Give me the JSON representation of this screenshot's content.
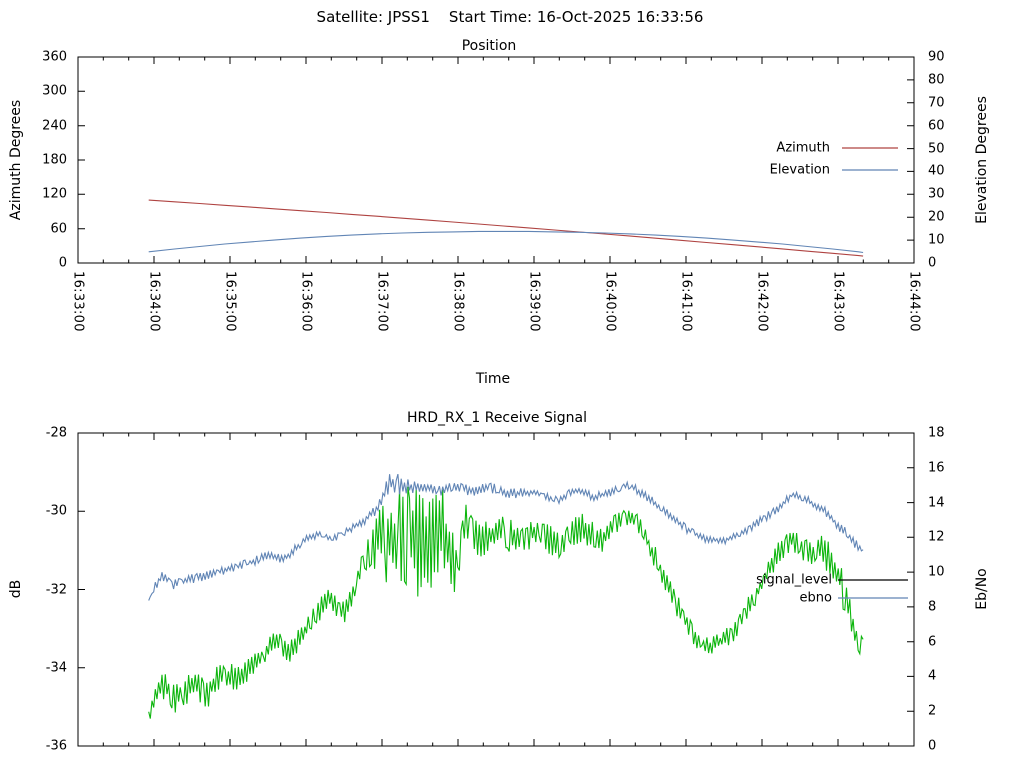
{
  "header": {
    "title": "Satellite: JPSS1    Start Time: 16-Oct-2025 16:33:56"
  },
  "chart_data": [
    {
      "type": "line",
      "title": "Position",
      "xlabel": "Time",
      "grid": false,
      "x_ticks": [
        "16:33:00",
        "16:34:00",
        "16:35:00",
        "16:36:00",
        "16:37:00",
        "16:38:00",
        "16:39:00",
        "16:40:00",
        "16:41:00",
        "16:42:00",
        "16:43:00",
        "16:44:00"
      ],
      "x_tick_minutes": [
        33,
        34,
        35,
        36,
        37,
        38,
        39,
        40,
        41,
        42,
        43,
        44
      ],
      "x_minor_tick_seconds": 20,
      "y_left": {
        "label": "Azimuth Degrees",
        "range": [
          0,
          360
        ],
        "ticks": [
          0,
          60,
          120,
          180,
          240,
          300,
          360
        ]
      },
      "y_right": {
        "label": "Elevation Degrees",
        "range": [
          0,
          90
        ],
        "ticks": [
          0,
          10,
          20,
          30,
          40,
          50,
          60,
          70,
          80,
          90
        ]
      },
      "legend": [
        {
          "label": "Azimuth",
          "sample_color": "#af4341"
        },
        {
          "label": "Elevation",
          "sample_color": "#6185b5"
        }
      ],
      "series": [
        {
          "name": "Azimuth",
          "axis": "left",
          "color": "#af4341",
          "t": [
            33.93,
            34.27,
            34.6,
            34.93,
            35.27,
            35.6,
            35.93,
            36.27,
            36.6,
            36.93,
            37.27,
            37.6,
            37.93,
            38.27,
            38.6,
            38.93,
            39.27,
            39.6,
            39.93,
            40.27,
            40.6,
            40.93,
            41.27,
            41.6,
            41.93,
            42.27,
            42.6,
            42.93,
            43.27,
            43.33
          ],
          "values": [
            110.0,
            107.0,
            103.9,
            100.9,
            97.7,
            94.6,
            91.4,
            88.2,
            84.9,
            81.7,
            78.3,
            75.0,
            71.6,
            68.2,
            64.7,
            61.3,
            57.7,
            54.2,
            50.6,
            47.0,
            43.3,
            39.7,
            35.9,
            32.2,
            28.4,
            24.6,
            20.7,
            16.9,
            12.9,
            12.1
          ]
        },
        {
          "name": "Elevation",
          "axis": "right",
          "color": "#6185b5",
          "t": [
            33.93,
            34.27,
            34.6,
            34.93,
            35.27,
            35.6,
            35.93,
            36.27,
            36.6,
            36.93,
            37.27,
            37.6,
            37.93,
            38.27,
            38.6,
            38.93,
            39.27,
            39.6,
            39.93,
            40.27,
            40.6,
            40.93,
            41.27,
            41.6,
            41.93,
            42.27,
            42.6,
            42.93,
            43.27,
            43.33
          ],
          "values": [
            4.9,
            6.1,
            7.2,
            8.3,
            9.2,
            10.1,
            10.9,
            11.6,
            12.2,
            12.7,
            13.1,
            13.4,
            13.6,
            13.8,
            13.8,
            13.8,
            13.6,
            13.4,
            13.1,
            12.7,
            12.2,
            11.6,
            10.9,
            10.1,
            9.2,
            8.3,
            7.2,
            6.1,
            4.9,
            4.6
          ]
        }
      ]
    },
    {
      "type": "line",
      "title": "HRD_RX_1 Receive Signal",
      "xlabel": "",
      "grid": false,
      "x_tick_minutes": [
        33,
        34,
        35,
        36,
        37,
        38,
        39,
        40,
        41,
        42,
        43,
        44
      ],
      "x_tick_labels_visible": false,
      "x_minor_tick_seconds": 20,
      "y_left": {
        "label": "dB",
        "range": [
          -36,
          -28
        ],
        "ticks": [
          -36,
          -34,
          -32,
          -30,
          -28
        ]
      },
      "y_right": {
        "label": "Eb/No",
        "range": [
          0,
          18
        ],
        "ticks": [
          0,
          2,
          4,
          6,
          8,
          10,
          12,
          14,
          16,
          18
        ]
      },
      "legend": [
        {
          "label": "signal_level",
          "sample_color": "#000000"
        },
        {
          "label": "ebno",
          "sample_color": "#6185b5"
        }
      ],
      "series": [
        {
          "name": "signal_level",
          "axis": "left",
          "color": "#0cb50c",
          "noise_seed": 7,
          "keyframes": [
            [
              33.93,
              -35.2,
              0.25
            ],
            [
              34.1,
              -34.4,
              0.35
            ],
            [
              34.3,
              -34.8,
              0.4
            ],
            [
              34.5,
              -34.4,
              0.4
            ],
            [
              34.7,
              -34.7,
              0.35
            ],
            [
              34.9,
              -34.1,
              0.35
            ],
            [
              35.1,
              -34.3,
              0.3
            ],
            [
              35.35,
              -33.8,
              0.3
            ],
            [
              35.6,
              -33.3,
              0.3
            ],
            [
              35.8,
              -33.6,
              0.3
            ],
            [
              36.0,
              -33.0,
              0.25
            ],
            [
              36.3,
              -32.2,
              0.3
            ],
            [
              36.5,
              -32.6,
              0.3
            ],
            [
              36.7,
              -31.6,
              0.35
            ],
            [
              36.85,
              -31.0,
              0.6
            ],
            [
              37.0,
              -30.6,
              1.0
            ],
            [
              37.2,
              -30.9,
              1.5
            ],
            [
              37.4,
              -30.7,
              1.6
            ],
            [
              37.6,
              -30.9,
              1.5
            ],
            [
              37.8,
              -30.6,
              1.2
            ],
            [
              37.95,
              -31.5,
              0.9
            ],
            [
              38.1,
              -30.3,
              0.5
            ],
            [
              38.3,
              -30.8,
              0.5
            ],
            [
              38.5,
              -30.5,
              0.45
            ],
            [
              38.8,
              -30.7,
              0.4
            ],
            [
              39.1,
              -30.5,
              0.4
            ],
            [
              39.3,
              -30.9,
              0.4
            ],
            [
              39.6,
              -30.4,
              0.4
            ],
            [
              39.9,
              -30.7,
              0.35
            ],
            [
              40.1,
              -30.3,
              0.3
            ],
            [
              40.35,
              -30.2,
              0.25
            ],
            [
              40.6,
              -31.2,
              0.3
            ],
            [
              40.85,
              -32.3,
              0.3
            ],
            [
              41.1,
              -33.2,
              0.25
            ],
            [
              41.3,
              -33.5,
              0.25
            ],
            [
              41.5,
              -33.3,
              0.25
            ],
            [
              41.7,
              -32.9,
              0.3
            ],
            [
              41.95,
              -32.0,
              0.3
            ],
            [
              42.2,
              -31.1,
              0.3
            ],
            [
              42.4,
              -30.7,
              0.3
            ],
            [
              42.6,
              -31.1,
              0.35
            ],
            [
              42.8,
              -31.0,
              0.4
            ],
            [
              43.0,
              -31.6,
              0.5
            ],
            [
              43.15,
              -32.6,
              0.4
            ],
            [
              43.28,
              -33.5,
              0.2
            ],
            [
              43.33,
              -33.2,
              0.1
            ]
          ]
        },
        {
          "name": "ebno",
          "axis": "right",
          "color": "#6185b5",
          "noise_seed": 13,
          "keyframes": [
            [
              33.93,
              8.5,
              0.25
            ],
            [
              34.1,
              9.8,
              0.3
            ],
            [
              34.25,
              9.3,
              0.3
            ],
            [
              34.5,
              9.6,
              0.3
            ],
            [
              34.75,
              9.9,
              0.25
            ],
            [
              35.0,
              10.2,
              0.25
            ],
            [
              35.3,
              10.6,
              0.25
            ],
            [
              35.5,
              11.0,
              0.25
            ],
            [
              35.7,
              10.7,
              0.25
            ],
            [
              36.0,
              11.9,
              0.25
            ],
            [
              36.2,
              12.2,
              0.2
            ],
            [
              36.35,
              11.9,
              0.2
            ],
            [
              36.55,
              12.4,
              0.2
            ],
            [
              36.75,
              12.9,
              0.25
            ],
            [
              36.95,
              13.7,
              0.3
            ],
            [
              37.1,
              15.2,
              0.7
            ],
            [
              37.25,
              15.0,
              0.6
            ],
            [
              37.4,
              14.8,
              0.4
            ],
            [
              37.6,
              14.9,
              0.35
            ],
            [
              37.8,
              14.7,
              0.35
            ],
            [
              38.0,
              14.9,
              0.3
            ],
            [
              38.2,
              14.6,
              0.3
            ],
            [
              38.4,
              14.9,
              0.3
            ],
            [
              38.7,
              14.5,
              0.3
            ],
            [
              39.0,
              14.6,
              0.25
            ],
            [
              39.3,
              14.1,
              0.25
            ],
            [
              39.55,
              14.7,
              0.25
            ],
            [
              39.8,
              14.3,
              0.25
            ],
            [
              40.0,
              14.6,
              0.25
            ],
            [
              40.25,
              15.0,
              0.25
            ],
            [
              40.5,
              14.3,
              0.25
            ],
            [
              40.75,
              13.4,
              0.25
            ],
            [
              41.0,
              12.5,
              0.25
            ],
            [
              41.25,
              11.9,
              0.2
            ],
            [
              41.5,
              11.8,
              0.2
            ],
            [
              41.75,
              12.3,
              0.25
            ],
            [
              42.0,
              13.0,
              0.25
            ],
            [
              42.2,
              13.6,
              0.25
            ],
            [
              42.4,
              14.5,
              0.25
            ],
            [
              42.6,
              14.1,
              0.25
            ],
            [
              42.8,
              13.6,
              0.3
            ],
            [
              43.0,
              12.7,
              0.3
            ],
            [
              43.15,
              12.0,
              0.3
            ],
            [
              43.33,
              11.2,
              0.25
            ]
          ]
        }
      ]
    }
  ]
}
